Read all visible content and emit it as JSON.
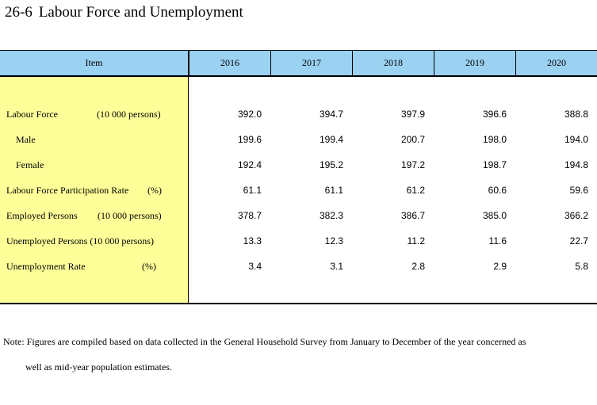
{
  "title": {
    "number": "26-6",
    "text": "Labour Force and Unemployment"
  },
  "table": {
    "item_header": "Item",
    "years": [
      "2016",
      "2017",
      "2018",
      "2019",
      "2020"
    ],
    "rows": [
      {
        "label": "Labour Force",
        "unit": "(10 000 persons)",
        "values": [
          "392.0",
          "394.7",
          "397.9",
          "396.6",
          "388.8"
        ]
      },
      {
        "label": "Male",
        "unit": "",
        "values": [
          "199.6",
          "199.4",
          "200.7",
          "198.0",
          "194.0"
        ]
      },
      {
        "label": "Female",
        "unit": "",
        "values": [
          "192.4",
          "195.2",
          "197.2",
          "198.7",
          "194.8"
        ]
      },
      {
        "label": "Labour Force Participation Rate",
        "unit": "(%)",
        "values": [
          "61.1",
          "61.1",
          "61.2",
          "60.6",
          "59.6"
        ]
      },
      {
        "label": "Employed Persons",
        "unit": "(10 000 persons)",
        "values": [
          "378.7",
          "382.3",
          "386.7",
          "385.0",
          "366.2"
        ]
      },
      {
        "label": "Unemployed Persons (10 000 persons)",
        "unit": "",
        "values": [
          "13.3",
          "12.3",
          "11.2",
          "11.6",
          "22.7"
        ]
      },
      {
        "label": "Unemployment Rate",
        "unit": "(%)",
        "values": [
          "3.4",
          "3.1",
          "2.8",
          "2.9",
          "5.8"
        ]
      }
    ]
  },
  "note": {
    "line1": "Note: Figures are compiled based on data collected in the General Household Survey from January to December of the year concerned as",
    "line2": "well as mid-year population estimates."
  }
}
